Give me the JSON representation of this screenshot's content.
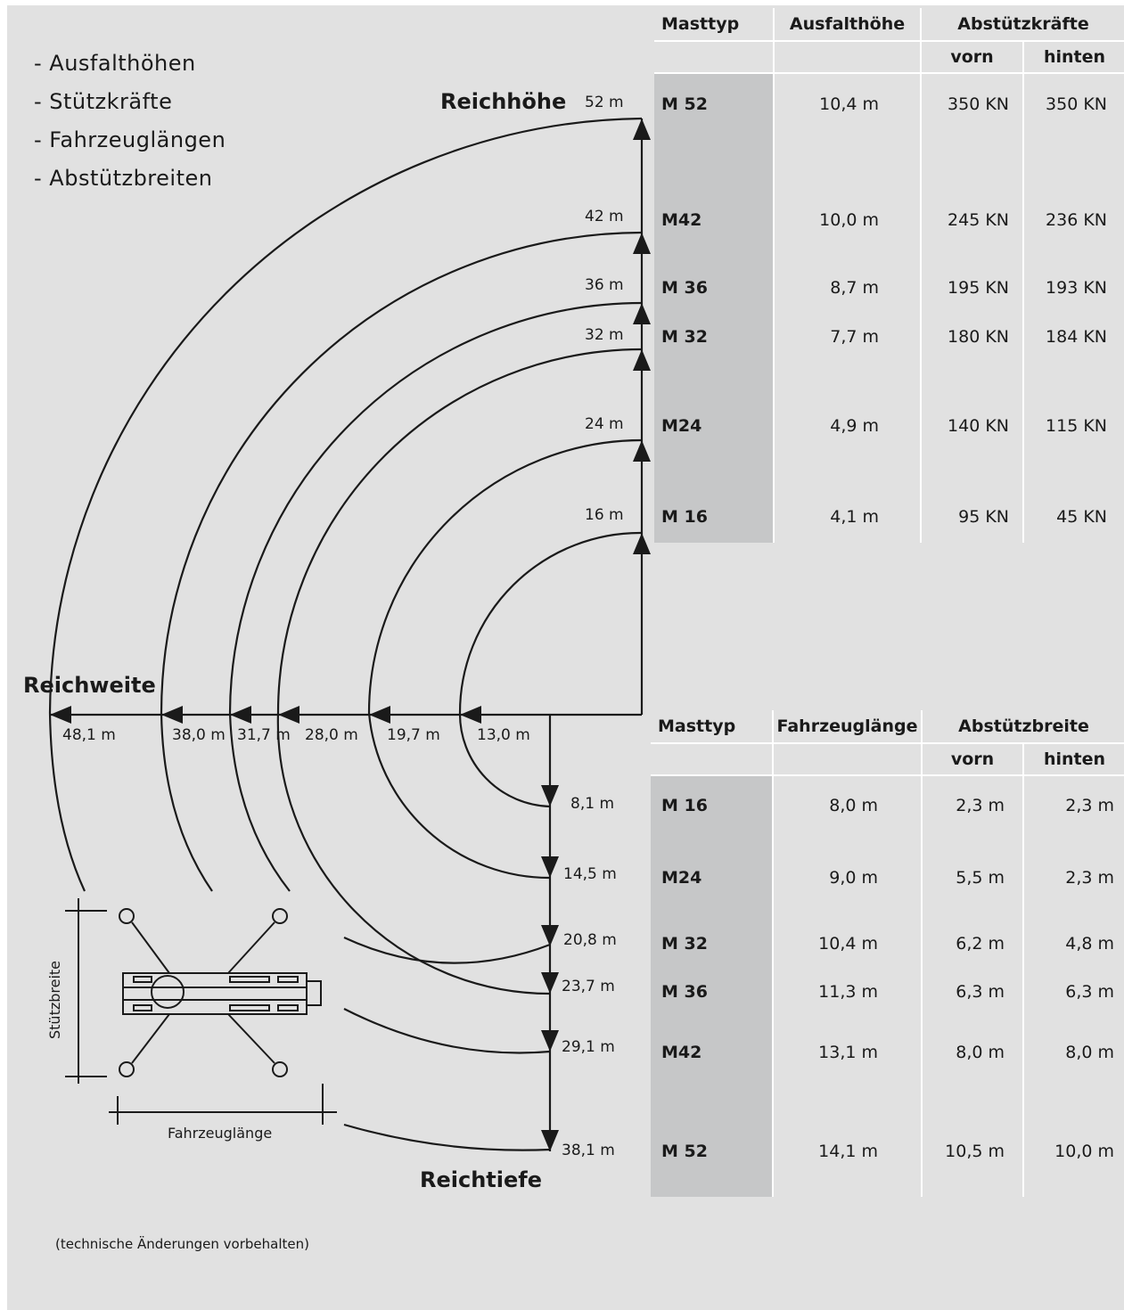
{
  "bullets": [
    "- Ausfalthöhen",
    "- Stützkräfte",
    "- Fahrzeuglängen",
    "- Abstützbreiten"
  ],
  "axis_labels": {
    "height": "Reichhöhe",
    "width": "Reichweite",
    "depth": "Reichtiefe",
    "support_width": "Stützbreite",
    "vehicle_length": "Fahrzeuglänge"
  },
  "height_marks": [
    "52 m",
    "42 m",
    "36 m",
    "32 m",
    "24 m",
    "16 m"
  ],
  "width_marks": [
    "48,1 m",
    "38,0 m",
    "31,7 m",
    "28,0 m",
    "19,7 m",
    "13,0 m"
  ],
  "depth_marks": [
    "8,1 m",
    "14,5 m",
    "20,8 m",
    "23,7 m",
    "29,1 m",
    "38,1 m"
  ],
  "table_top": {
    "headers": [
      "Masttyp",
      "Ausfalthöhe",
      "Abstützkräfte"
    ],
    "subheaders": [
      "vorn",
      "hinten"
    ],
    "rows": [
      {
        "type": "M 52",
        "height": "10,4 m",
        "front": "350 KN",
        "rear": "350 KN"
      },
      {
        "type": "M42",
        "height": "10,0 m",
        "front": "245 KN",
        "rear": "236 KN"
      },
      {
        "type": "M 36",
        "height": "8,7 m",
        "front": "195 KN",
        "rear": "193 KN"
      },
      {
        "type": "M 32",
        "height": "7,7 m",
        "front": "180 KN",
        "rear": "184 KN"
      },
      {
        "type": "M24",
        "height": "4,9 m",
        "front": "140 KN",
        "rear": "115 KN"
      },
      {
        "type": "M 16",
        "height": "4,1 m",
        "front": "95 KN",
        "rear": "45 KN"
      }
    ]
  },
  "table_bottom": {
    "headers": [
      "Masttyp",
      "Fahrzeuglänge",
      "Abstützbreite"
    ],
    "subheaders": [
      "vorn",
      "hinten"
    ],
    "rows": [
      {
        "type": "M 16",
        "length": "8,0 m",
        "front": "2,3 m",
        "rear": "2,3 m"
      },
      {
        "type": "M24",
        "length": "9,0 m",
        "front": "5,5 m",
        "rear": "2,3 m"
      },
      {
        "type": "M 32",
        "length": "10,4 m",
        "front": "6,2 m",
        "rear": "4,8 m"
      },
      {
        "type": "M 36",
        "length": "11,3 m",
        "front": "6,3 m",
        "rear": "6,3 m"
      },
      {
        "type": "M42",
        "length": "13,1 m",
        "front": "8,0 m",
        "rear": "8,0 m"
      },
      {
        "type": "M 52",
        "length": "14,1 m",
        "front": "10,5 m",
        "rear": "10,0 m"
      }
    ]
  },
  "footnote": "(technische Änderungen vorbehalten)"
}
